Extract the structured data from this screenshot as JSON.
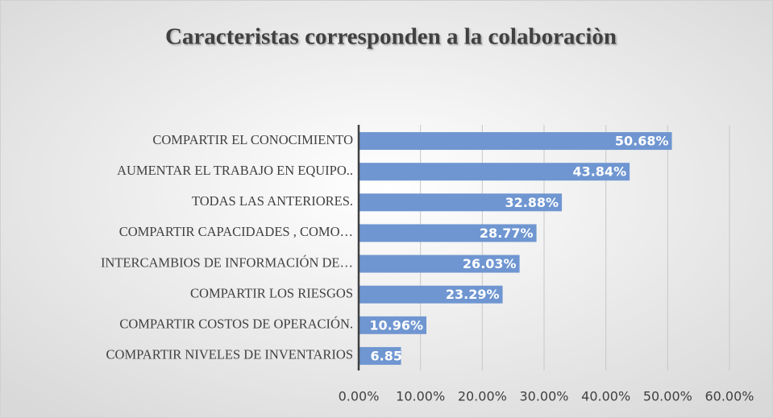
{
  "chart_data": {
    "type": "bar",
    "orientation": "horizontal",
    "title": "Caracteristas  corresponden a la colaboraciòn",
    "categories": [
      "COMPARTIR EL CONOCIMIENTO",
      "AUMENTAR EL TRABAJO EN EQUIPO..",
      "TODAS LAS ANTERIORES.",
      "COMPARTIR CAPACIDADES , COMO…",
      "INTERCAMBIOS DE INFORMACIÓN DE…",
      "COMPARTIR LOS RIESGOS",
      "COMPARTIR COSTOS DE OPERACIÓN.",
      "COMPARTIR NIVELES DE INVENTARIOS"
    ],
    "values": [
      50.68,
      43.84,
      32.88,
      28.77,
      26.03,
      23.29,
      10.96,
      6.85
    ],
    "value_labels": [
      "50.68%",
      "43.84%",
      "32.88%",
      "28.77%",
      "26.03%",
      "23.29%",
      "10.96%",
      "6.85%"
    ],
    "color": "#6f96d1",
    "xlim": [
      0,
      60
    ],
    "xticks": [
      {
        "value": 0,
        "label": "0.00%"
      },
      {
        "value": 10,
        "label": "10.00%"
      },
      {
        "value": 20,
        "label": "20.00%"
      },
      {
        "value": 30,
        "label": "30.00%"
      },
      {
        "value": 40,
        "label": "40.00%"
      },
      {
        "value": 50,
        "label": "50.00%"
      },
      {
        "value": 60,
        "label": "60.00%"
      }
    ],
    "grid": true
  }
}
